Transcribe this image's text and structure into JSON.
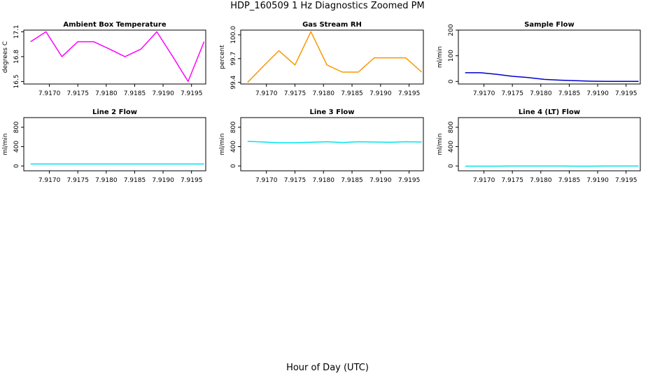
{
  "figure": {
    "title": "HDP_160509  1 Hz Diagnostics Zoomed PM",
    "xlabel": "Hour of Day (UTC)"
  },
  "chart_data": [
    {
      "type": "line",
      "title": "Ambient Box Temperature",
      "ylabel": "degrees C",
      "xlim": [
        7.91655,
        7.91975
      ],
      "ylim": [
        16.47,
        17.12
      ],
      "xticks": [
        "7.9170",
        "7.9175",
        "7.9180",
        "7.9185",
        "7.9190",
        "7.9195"
      ],
      "yticks": [
        "16.5",
        "16.8",
        "17.1"
      ],
      "color": "#ff00ff",
      "x": [
        7.91667,
        7.91694,
        7.91722,
        7.9175,
        7.91778,
        7.91806,
        7.91833,
        7.91861,
        7.91889,
        7.91917,
        7.91944,
        7.91972
      ],
      "y": [
        16.98,
        17.1,
        16.8,
        16.98,
        16.98,
        16.89,
        16.8,
        16.89,
        17.1,
        16.8,
        16.5,
        16.98
      ]
    },
    {
      "type": "line",
      "title": "Gas Stream RH",
      "ylabel": "percent",
      "xlim": [
        7.91655,
        7.91975
      ],
      "ylim": [
        99.38,
        100.06
      ],
      "xticks": [
        "7.9170",
        "7.9175",
        "7.9180",
        "7.9185",
        "7.9190",
        "7.9195"
      ],
      "yticks": [
        "99.4",
        "99.7",
        "100.0"
      ],
      "color": "#ff8c00",
      "dot_color": "#e0d000",
      "x": [
        7.91667,
        7.91694,
        7.91722,
        7.9175,
        7.91778,
        7.91806,
        7.91833,
        7.91861,
        7.91889,
        7.91917,
        7.91944,
        7.91972
      ],
      "y": [
        99.4,
        99.6,
        99.8,
        99.62,
        100.04,
        99.62,
        99.53,
        99.53,
        99.71,
        99.71,
        99.71,
        99.53
      ]
    },
    {
      "type": "line",
      "title": "Sample Flow",
      "ylabel": "ml/min",
      "xlim": [
        7.91655,
        7.91975
      ],
      "ylim": [
        -10,
        200
      ],
      "xticks": [
        "7.9170",
        "7.9175",
        "7.9180",
        "7.9185",
        "7.9190",
        "7.9195"
      ],
      "yticks": [
        "0",
        "100",
        "200"
      ],
      "color": "#0000cd",
      "x": [
        7.91667,
        7.91694,
        7.91722,
        7.9175,
        7.91778,
        7.91806,
        7.91833,
        7.91861,
        7.91889,
        7.91917,
        7.91944,
        7.91972
      ],
      "y": [
        34,
        34,
        28,
        20,
        15,
        8,
        5,
        3,
        1,
        0,
        0,
        0
      ]
    },
    {
      "type": "line",
      "title": "Line 2 Flow",
      "ylabel": "ml/min",
      "xlim": [
        7.91655,
        7.91975
      ],
      "ylim": [
        -100,
        1000
      ],
      "xticks": [
        "7.9170",
        "7.9175",
        "7.9180",
        "7.9185",
        "7.9190",
        "7.9195"
      ],
      "yticks": [
        "0",
        "400",
        "800"
      ],
      "color": "#00e5ee",
      "x": [
        7.91667,
        7.91972
      ],
      "y": [
        40,
        40
      ]
    },
    {
      "type": "line",
      "title": "Line 3 Flow",
      "ylabel": "ml/min",
      "xlim": [
        7.91655,
        7.91975
      ],
      "ylim": [
        -100,
        1000
      ],
      "xticks": [
        "7.9170",
        "7.9175",
        "7.9180",
        "7.9185",
        "7.9190",
        "7.9195"
      ],
      "yticks": [
        "0",
        "400",
        "800"
      ],
      "color": "#00e5ee",
      "x": [
        7.91667,
        7.91694,
        7.91722,
        7.9175,
        7.91778,
        7.91806,
        7.91833,
        7.91861,
        7.91889,
        7.91917,
        7.91944,
        7.91972
      ],
      "y": [
        510,
        495,
        480,
        480,
        490,
        500,
        485,
        500,
        495,
        490,
        500,
        495
      ]
    },
    {
      "type": "line",
      "title": "Line 4 (LT) Flow",
      "ylabel": "ml/min",
      "xlim": [
        7.91655,
        7.91975
      ],
      "ylim": [
        -100,
        1000
      ],
      "xticks": [
        "7.9170",
        "7.9175",
        "7.9180",
        "7.9185",
        "7.9190",
        "7.9195"
      ],
      "yticks": [
        "0",
        "400",
        "800"
      ],
      "color": "#00e5ee",
      "x": [
        7.91667,
        7.91694,
        7.91722,
        7.9175,
        7.91778,
        7.91806,
        7.91833,
        7.91861,
        7.91889,
        7.91917,
        7.91944,
        7.91972
      ],
      "y": [
        -5,
        -5,
        -5,
        0,
        0,
        0,
        0,
        -5,
        -5,
        0,
        0,
        0
      ]
    }
  ]
}
